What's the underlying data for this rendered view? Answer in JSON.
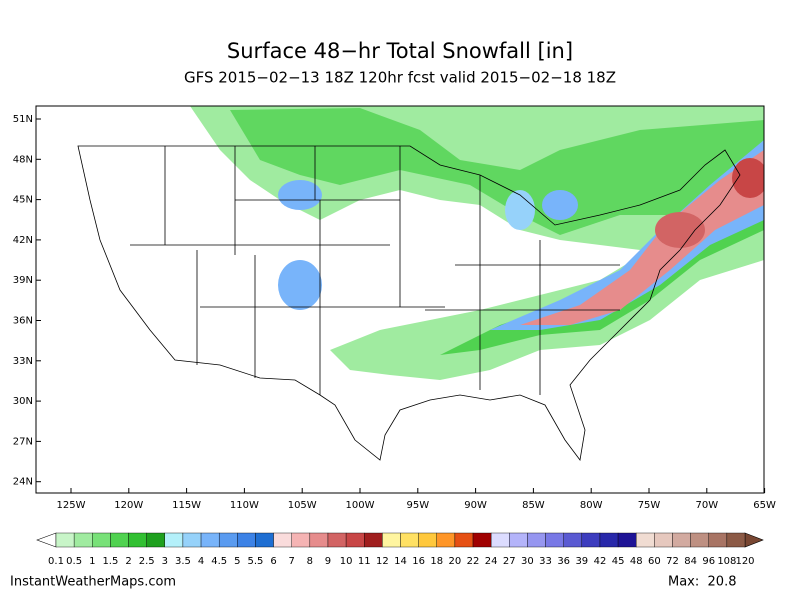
{
  "title": "Surface 48−hr Total Snowfall [in]",
  "subtitle": "GFS 2015−02−13 18Z 120hr fcst valid 2015−02−18 18Z",
  "map": {
    "lat_labels": [
      "51N",
      "48N",
      "45N",
      "42N",
      "39N",
      "36N",
      "33N",
      "30N",
      "27N",
      "24N"
    ],
    "lon_labels": [
      "125W",
      "120W",
      "115W",
      "110W",
      "105W",
      "100W",
      "95W",
      "90W",
      "85W",
      "80W",
      "75W",
      "70W",
      "65W"
    ]
  },
  "colorbar": {
    "labels": [
      "0.1",
      "0.5",
      "1",
      "1.5",
      "2",
      "2.5",
      "3",
      "3.5",
      "4",
      "4.5",
      "5",
      "5.5",
      "6",
      "7",
      "8",
      "9",
      "10",
      "11",
      "12",
      "14",
      "16",
      "18",
      "20",
      "22",
      "24",
      "27",
      "30",
      "33",
      "36",
      "39",
      "42",
      "45",
      "48",
      "60",
      "72",
      "84",
      "96",
      "108",
      "120"
    ],
    "colors": [
      "#c8f5c8",
      "#a0eba0",
      "#78e178",
      "#50d250",
      "#32c032",
      "#1ea01e",
      "#b4f0fa",
      "#96d2fa",
      "#78b4fa",
      "#5a9bf0",
      "#3c82e6",
      "#1e6ed2",
      "#fadcdc",
      "#f5b4b4",
      "#e68c8c",
      "#d26464",
      "#c84646",
      "#a01e1e",
      "#fff5a0",
      "#ffe164",
      "#ffc83c",
      "#ff9628",
      "#e65014",
      "#a00000",
      "#dcdcff",
      "#b4b4fa",
      "#9696f0",
      "#7878e6",
      "#5a5ad2",
      "#3c3cbe",
      "#2828aa",
      "#1e1496",
      "#f0dcd2",
      "#e6c8be",
      "#d2aaa0",
      "#be9082",
      "#a87464",
      "#8c5a46"
    ]
  },
  "footer": {
    "site": "InstantWeatherMaps.com",
    "max": "Max:  20.8"
  }
}
